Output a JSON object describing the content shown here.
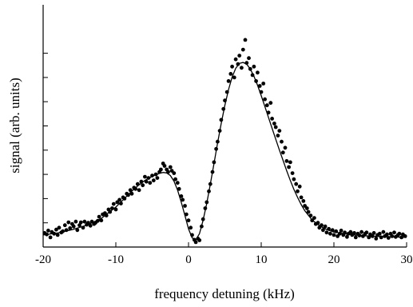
{
  "chart_data": {
    "type": "scatter",
    "title": "",
    "xlabel": "frequency detuning (kHz)",
    "ylabel": "signal (arb. units)",
    "xlim": [
      -20,
      30
    ],
    "ylim": [
      0,
      10
    ],
    "x_ticks": [
      -20,
      -10,
      0,
      10,
      20,
      30
    ],
    "x_tick_labels": [
      "-20",
      "-10",
      "0",
      "10",
      "20",
      "30"
    ],
    "y_ticks": [
      0,
      1,
      2,
      3,
      4,
      5,
      6,
      7,
      8
    ],
    "grid": false,
    "legend": "none",
    "series": [
      {
        "kind": "scatter",
        "color": "#000000",
        "points": [
          [
            -19.8,
            0.58
          ],
          [
            -19.5,
            0.52
          ],
          [
            -19.3,
            0.68
          ],
          [
            -19.0,
            0.4
          ],
          [
            -18.8,
            0.62
          ],
          [
            -18.5,
            0.55
          ],
          [
            -18.2,
            0.72
          ],
          [
            -18.0,
            0.5
          ],
          [
            -17.8,
            0.8
          ],
          [
            -17.5,
            0.6
          ],
          [
            -17.3,
            0.65
          ],
          [
            -17.0,
            0.9
          ],
          [
            -16.8,
            0.7
          ],
          [
            -16.5,
            1.02
          ],
          [
            -16.3,
            0.78
          ],
          [
            -16.0,
            0.95
          ],
          [
            -15.8,
            0.85
          ],
          [
            -15.5,
            1.05
          ],
          [
            -15.3,
            0.7
          ],
          [
            -15.0,
            0.9
          ],
          [
            -14.8,
            1.02
          ],
          [
            -14.5,
            0.8
          ],
          [
            -14.3,
            1.05
          ],
          [
            -14.0,
            0.92
          ],
          [
            -13.8,
            1.0
          ],
          [
            -13.5,
            0.88
          ],
          [
            -13.3,
            1.05
          ],
          [
            -13.0,
            0.95
          ],
          [
            -12.8,
            1.0
          ],
          [
            -12.5,
            1.08
          ],
          [
            -12.3,
            1.25
          ],
          [
            -12.0,
            1.1
          ],
          [
            -11.8,
            1.35
          ],
          [
            -11.5,
            1.4
          ],
          [
            -11.3,
            1.3
          ],
          [
            -11.0,
            1.55
          ],
          [
            -10.8,
            1.45
          ],
          [
            -10.5,
            1.6
          ],
          [
            -10.3,
            1.78
          ],
          [
            -10.0,
            1.55
          ],
          [
            -9.8,
            1.85
          ],
          [
            -9.5,
            1.95
          ],
          [
            -9.3,
            1.8
          ],
          [
            -9.0,
            2.05
          ],
          [
            -8.8,
            2.0
          ],
          [
            -8.5,
            2.2
          ],
          [
            -8.3,
            2.15
          ],
          [
            -8.0,
            2.35
          ],
          [
            -7.8,
            2.2
          ],
          [
            -7.5,
            2.45
          ],
          [
            -7.3,
            2.4
          ],
          [
            -7.0,
            2.6
          ],
          [
            -6.8,
            2.35
          ],
          [
            -6.5,
            2.7
          ],
          [
            -6.3,
            2.55
          ],
          [
            -6.0,
            2.9
          ],
          [
            -5.8,
            2.7
          ],
          [
            -5.5,
            2.85
          ],
          [
            -5.3,
            2.65
          ],
          [
            -5.0,
            2.95
          ],
          [
            -4.8,
            2.75
          ],
          [
            -4.5,
            3.0
          ],
          [
            -4.3,
            2.85
          ],
          [
            -4.0,
            3.1
          ],
          [
            -3.8,
            3.2
          ],
          [
            -3.5,
            3.45
          ],
          [
            -3.3,
            3.35
          ],
          [
            -3.0,
            3.2
          ],
          [
            -2.8,
            3.1
          ],
          [
            -2.5,
            3.3
          ],
          [
            -2.3,
            3.15
          ],
          [
            -2.0,
            3.05
          ],
          [
            -1.8,
            2.8
          ],
          [
            -1.5,
            2.65
          ],
          [
            -1.3,
            2.4
          ],
          [
            -1.0,
            2.1
          ],
          [
            -0.8,
            1.95
          ],
          [
            -0.5,
            1.7
          ],
          [
            -0.3,
            1.35
          ],
          [
            0.0,
            1.1
          ],
          [
            0.3,
            0.8
          ],
          [
            0.5,
            0.5
          ],
          [
            0.8,
            0.3
          ],
          [
            1.0,
            0.2
          ],
          [
            1.3,
            0.35
          ],
          [
            1.5,
            0.28
          ],
          [
            1.8,
            0.85
          ],
          [
            2.0,
            1.15
          ],
          [
            2.3,
            1.6
          ],
          [
            2.5,
            1.85
          ],
          [
            2.8,
            2.3
          ],
          [
            3.0,
            2.6
          ],
          [
            3.3,
            3.1
          ],
          [
            3.5,
            3.5
          ],
          [
            3.8,
            4.05
          ],
          [
            4.0,
            4.35
          ],
          [
            4.3,
            4.8
          ],
          [
            4.5,
            5.25
          ],
          [
            4.8,
            5.7
          ],
          [
            5.0,
            6.05
          ],
          [
            5.3,
            6.4
          ],
          [
            5.5,
            6.85
          ],
          [
            5.8,
            7.15
          ],
          [
            6.0,
            7.45
          ],
          [
            6.3,
            7.0
          ],
          [
            6.5,
            7.75
          ],
          [
            6.8,
            7.55
          ],
          [
            7.0,
            7.9
          ],
          [
            7.3,
            7.4
          ],
          [
            7.5,
            8.15
          ],
          [
            7.8,
            8.55
          ],
          [
            8.0,
            7.6
          ],
          [
            8.3,
            7.8
          ],
          [
            8.5,
            7.35
          ],
          [
            8.8,
            7.1
          ],
          [
            9.0,
            7.45
          ],
          [
            9.3,
            6.85
          ],
          [
            9.5,
            7.2
          ],
          [
            9.8,
            6.65
          ],
          [
            10.0,
            6.4
          ],
          [
            10.3,
            6.75
          ],
          [
            10.5,
            6.1
          ],
          [
            10.8,
            5.85
          ],
          [
            11.0,
            5.55
          ],
          [
            11.3,
            5.95
          ],
          [
            11.5,
            5.3
          ],
          [
            11.8,
            5.1
          ],
          [
            12.0,
            4.95
          ],
          [
            12.3,
            4.6
          ],
          [
            12.5,
            4.8
          ],
          [
            12.8,
            4.35
          ],
          [
            13.0,
            3.9
          ],
          [
            13.3,
            4.1
          ],
          [
            13.5,
            3.55
          ],
          [
            13.8,
            3.3
          ],
          [
            14.0,
            3.5
          ],
          [
            14.3,
            3.05
          ],
          [
            14.5,
            2.8
          ],
          [
            14.8,
            2.6
          ],
          [
            15.0,
            2.3
          ],
          [
            15.3,
            2.5
          ],
          [
            15.5,
            2.05
          ],
          [
            15.8,
            1.9
          ],
          [
            16.0,
            1.7
          ],
          [
            16.3,
            1.6
          ],
          [
            16.5,
            1.45
          ],
          [
            16.8,
            1.3
          ],
          [
            17.0,
            1.1
          ],
          [
            17.3,
            1.2
          ],
          [
            17.5,
            0.95
          ],
          [
            17.8,
            1.0
          ],
          [
            18.0,
            0.8
          ],
          [
            18.3,
            0.9
          ],
          [
            18.5,
            0.7
          ],
          [
            18.8,
            0.85
          ],
          [
            19.0,
            0.6
          ],
          [
            19.3,
            0.75
          ],
          [
            19.5,
            0.55
          ],
          [
            19.8,
            0.7
          ],
          [
            20.0,
            0.5
          ],
          [
            20.3,
            0.65
          ],
          [
            20.5,
            0.45
          ],
          [
            20.8,
            0.55
          ],
          [
            21.0,
            0.68
          ],
          [
            21.3,
            0.5
          ],
          [
            21.5,
            0.6
          ],
          [
            21.8,
            0.42
          ],
          [
            22.0,
            0.55
          ],
          [
            22.3,
            0.62
          ],
          [
            22.5,
            0.5
          ],
          [
            22.8,
            0.58
          ],
          [
            23.0,
            0.4
          ],
          [
            23.3,
            0.55
          ],
          [
            23.5,
            0.48
          ],
          [
            23.8,
            0.62
          ],
          [
            24.0,
            0.45
          ],
          [
            24.3,
            0.55
          ],
          [
            24.5,
            0.6
          ],
          [
            24.8,
            0.4
          ],
          [
            25.0,
            0.52
          ],
          [
            25.3,
            0.45
          ],
          [
            25.5,
            0.58
          ],
          [
            25.8,
            0.35
          ],
          [
            26.0,
            0.5
          ],
          [
            26.3,
            0.55
          ],
          [
            26.5,
            0.4
          ],
          [
            26.8,
            0.62
          ],
          [
            27.0,
            0.45
          ],
          [
            27.3,
            0.52
          ],
          [
            27.5,
            0.38
          ],
          [
            27.8,
            0.55
          ],
          [
            28.0,
            0.45
          ],
          [
            28.3,
            0.6
          ],
          [
            28.5,
            0.42
          ],
          [
            28.8,
            0.5
          ],
          [
            29.0,
            0.55
          ],
          [
            29.3,
            0.4
          ],
          [
            29.5,
            0.52
          ],
          [
            29.8,
            0.45
          ]
        ]
      },
      {
        "kind": "line",
        "color": "#000000",
        "points": [
          [
            -20,
            0.5
          ],
          [
            -18,
            0.58
          ],
          [
            -16,
            0.72
          ],
          [
            -14,
            0.9
          ],
          [
            -12,
            1.18
          ],
          [
            -10,
            1.65
          ],
          [
            -9,
            1.95
          ],
          [
            -8,
            2.25
          ],
          [
            -7,
            2.52
          ],
          [
            -6,
            2.75
          ],
          [
            -5,
            2.92
          ],
          [
            -4,
            3.04
          ],
          [
            -3.5,
            3.08
          ],
          [
            -3,
            3.06
          ],
          [
            -2.5,
            2.95
          ],
          [
            -2,
            2.72
          ],
          [
            -1.5,
            2.35
          ],
          [
            -1,
            1.85
          ],
          [
            -0.5,
            1.3
          ],
          [
            0,
            0.75
          ],
          [
            0.5,
            0.38
          ],
          [
            1,
            0.3
          ],
          [
            1.5,
            0.55
          ],
          [
            2,
            1.1
          ],
          [
            2.5,
            1.8
          ],
          [
            3,
            2.6
          ],
          [
            3.5,
            3.45
          ],
          [
            4,
            4.3
          ],
          [
            4.5,
            5.1
          ],
          [
            5,
            5.85
          ],
          [
            5.5,
            6.5
          ],
          [
            6,
            7.02
          ],
          [
            6.5,
            7.38
          ],
          [
            7,
            7.58
          ],
          [
            7.5,
            7.62
          ],
          [
            8,
            7.55
          ],
          [
            8.5,
            7.35
          ],
          [
            9,
            7.05
          ],
          [
            9.5,
            6.68
          ],
          [
            10,
            6.25
          ],
          [
            10.5,
            5.8
          ],
          [
            11,
            5.35
          ],
          [
            11.5,
            4.9
          ],
          [
            12,
            4.45
          ],
          [
            12.5,
            4.0
          ],
          [
            13,
            3.58
          ],
          [
            13.5,
            3.15
          ],
          [
            14,
            2.75
          ],
          [
            14.5,
            2.38
          ],
          [
            15,
            2.05
          ],
          [
            15.5,
            1.75
          ],
          [
            16,
            1.5
          ],
          [
            17,
            1.12
          ],
          [
            18,
            0.88
          ],
          [
            19,
            0.72
          ],
          [
            20,
            0.62
          ],
          [
            22,
            0.52
          ],
          [
            24,
            0.47
          ],
          [
            26,
            0.44
          ],
          [
            28,
            0.42
          ],
          [
            30,
            0.4
          ]
        ]
      }
    ]
  }
}
